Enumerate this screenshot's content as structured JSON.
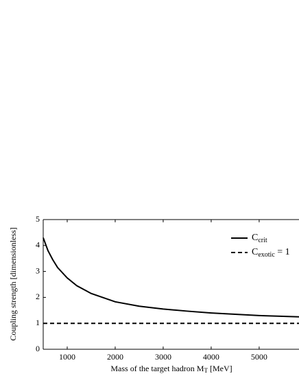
{
  "chart_data": {
    "type": "line",
    "xlabel": {
      "text": "Mass of the target hadron M",
      "sub": "T",
      "after": " [MeV]"
    },
    "ylabel": "Coupling strength [dimensionless]",
    "xlim": [
      500,
      5830
    ],
    "xticks": [
      1000,
      2000,
      3000,
      4000,
      5000
    ],
    "ylim": [
      0,
      5
    ],
    "yticks": [
      0,
      1,
      2,
      3,
      4,
      5
    ],
    "legend": "upper right",
    "series": [
      {
        "name": "C",
        "name_sub": "crit",
        "color": "#000000",
        "dash": "solid",
        "x": [
          500,
          600,
          700,
          800,
          1000,
          1200,
          1500,
          2000,
          2500,
          3000,
          3500,
          4000,
          4500,
          5000,
          5500,
          5830
        ],
        "values": [
          4.3,
          3.8,
          3.45,
          3.15,
          2.75,
          2.45,
          2.15,
          1.83,
          1.66,
          1.55,
          1.47,
          1.4,
          1.35,
          1.3,
          1.27,
          1.25
        ]
      },
      {
        "name": "C",
        "name_sub": "exotic",
        "name_suffix": " = 1",
        "color": "#000000",
        "dash": "dashed",
        "x": [
          500,
          5830
        ],
        "values": [
          1,
          1
        ]
      }
    ]
  }
}
